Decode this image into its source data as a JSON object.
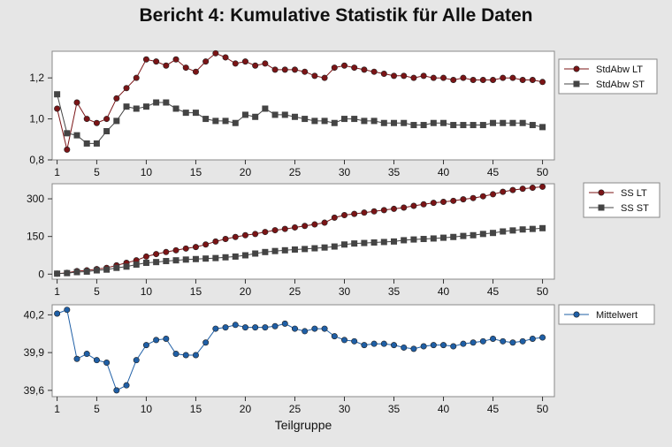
{
  "report": {
    "title": "Bericht 4: Kumulative Statistik für Alle Daten",
    "xlabel": "Teilgruppe"
  },
  "chart_data": [
    {
      "type": "line",
      "panel": "stdabw",
      "x": [
        1,
        2,
        3,
        4,
        5,
        6,
        7,
        8,
        9,
        10,
        11,
        12,
        13,
        14,
        15,
        16,
        17,
        18,
        19,
        20,
        21,
        22,
        23,
        24,
        25,
        26,
        27,
        28,
        29,
        30,
        31,
        32,
        33,
        34,
        35,
        36,
        37,
        38,
        39,
        40,
        41,
        42,
        43,
        44,
        45,
        46,
        47,
        48,
        49,
        50
      ],
      "xticks": [
        1,
        5,
        10,
        15,
        20,
        25,
        30,
        35,
        40,
        45,
        50
      ],
      "xlim": [
        0.5,
        51.2
      ],
      "ylim": [
        0.8,
        1.33
      ],
      "yticks": [
        0.8,
        1.0,
        1.2
      ],
      "ytick_labels": [
        "0,8",
        "1,0",
        "1,2"
      ],
      "legend_position": "right",
      "series": [
        {
          "name": "StdAbw LT",
          "marker": "circle",
          "color": "#7b1416",
          "values": [
            1.05,
            0.85,
            1.08,
            1.0,
            0.98,
            1.0,
            1.1,
            1.15,
            1.2,
            1.29,
            1.28,
            1.26,
            1.29,
            1.25,
            1.23,
            1.28,
            1.32,
            1.3,
            1.27,
            1.28,
            1.26,
            1.27,
            1.24,
            1.24,
            1.24,
            1.23,
            1.21,
            1.2,
            1.25,
            1.26,
            1.25,
            1.24,
            1.23,
            1.22,
            1.21,
            1.21,
            1.2,
            1.21,
            1.2,
            1.2,
            1.19,
            1.2,
            1.19,
            1.19,
            1.19,
            1.2,
            1.2,
            1.19,
            1.19,
            1.18
          ]
        },
        {
          "name": "StdAbw ST",
          "marker": "square",
          "color": "#444444",
          "values": [
            1.12,
            0.93,
            0.92,
            0.88,
            0.88,
            0.94,
            0.99,
            1.06,
            1.05,
            1.06,
            1.08,
            1.08,
            1.05,
            1.03,
            1.03,
            1.0,
            0.99,
            0.99,
            0.98,
            1.02,
            1.01,
            1.05,
            1.02,
            1.02,
            1.01,
            1.0,
            0.99,
            0.99,
            0.98,
            1.0,
            1.0,
            0.99,
            0.99,
            0.98,
            0.98,
            0.98,
            0.97,
            0.97,
            0.98,
            0.98,
            0.97,
            0.97,
            0.97,
            0.97,
            0.98,
            0.98,
            0.98,
            0.98,
            0.97,
            0.96
          ]
        }
      ]
    },
    {
      "type": "line",
      "panel": "ss",
      "x": [
        1,
        2,
        3,
        4,
        5,
        6,
        7,
        8,
        9,
        10,
        11,
        12,
        13,
        14,
        15,
        16,
        17,
        18,
        19,
        20,
        21,
        22,
        23,
        24,
        25,
        26,
        27,
        28,
        29,
        30,
        31,
        32,
        33,
        34,
        35,
        36,
        37,
        38,
        39,
        40,
        41,
        42,
        43,
        44,
        45,
        46,
        47,
        48,
        49,
        50
      ],
      "xticks": [
        1,
        5,
        10,
        15,
        20,
        25,
        30,
        35,
        40,
        45,
        50
      ],
      "xlim": [
        0.5,
        51.2
      ],
      "ylim": [
        -20,
        360
      ],
      "yticks": [
        0,
        150,
        300
      ],
      "ytick_labels": [
        "0",
        "150",
        "300"
      ],
      "legend_position": "right",
      "series": [
        {
          "name": "SS LT",
          "marker": "circle",
          "color": "#7b1416",
          "values": [
            2,
            5,
            12,
            15,
            20,
            25,
            35,
            45,
            55,
            70,
            80,
            88,
            95,
            102,
            108,
            118,
            130,
            140,
            148,
            155,
            160,
            168,
            175,
            180,
            186,
            192,
            198,
            205,
            225,
            235,
            240,
            245,
            250,
            255,
            260,
            265,
            272,
            278,
            284,
            288,
            292,
            298,
            303,
            310,
            318,
            328,
            335,
            340,
            344,
            348
          ]
        },
        {
          "name": "SS ST",
          "marker": "square",
          "color": "#444444",
          "values": [
            2,
            4,
            8,
            10,
            15,
            18,
            25,
            30,
            38,
            45,
            48,
            52,
            55,
            58,
            60,
            62,
            64,
            67,
            70,
            75,
            82,
            88,
            92,
            95,
            98,
            100,
            103,
            106,
            110,
            118,
            122,
            124,
            126,
            128,
            130,
            135,
            138,
            140,
            142,
            145,
            148,
            152,
            155,
            160,
            164,
            170,
            174,
            178,
            180,
            183
          ]
        }
      ]
    },
    {
      "type": "line",
      "panel": "mittelwert",
      "x": [
        1,
        2,
        3,
        4,
        5,
        6,
        7,
        8,
        9,
        10,
        11,
        12,
        13,
        14,
        15,
        16,
        17,
        18,
        19,
        20,
        21,
        22,
        23,
        24,
        25,
        26,
        27,
        28,
        29,
        30,
        31,
        32,
        33,
        34,
        35,
        36,
        37,
        38,
        39,
        40,
        41,
        42,
        43,
        44,
        45,
        46,
        47,
        48,
        49,
        50
      ],
      "xticks": [
        1,
        5,
        10,
        15,
        20,
        25,
        30,
        35,
        40,
        45,
        50
      ],
      "xlim": [
        0.5,
        51.2
      ],
      "ylim": [
        39.55,
        40.28
      ],
      "yticks": [
        39.6,
        39.9,
        40.2
      ],
      "ytick_labels": [
        "39,6",
        "39,9",
        "40,2"
      ],
      "legend_position": "right",
      "series": [
        {
          "name": "Mittelwert",
          "marker": "circle",
          "color": "#1f5fa6",
          "values": [
            40.21,
            40.24,
            39.85,
            39.89,
            39.84,
            39.82,
            39.6,
            39.64,
            39.84,
            39.96,
            40.0,
            40.01,
            39.89,
            39.88,
            39.88,
            39.98,
            40.09,
            40.1,
            40.12,
            40.1,
            40.1,
            40.1,
            40.11,
            40.13,
            40.09,
            40.07,
            40.09,
            40.09,
            40.03,
            40.0,
            39.99,
            39.96,
            39.97,
            39.97,
            39.96,
            39.94,
            39.93,
            39.95,
            39.96,
            39.96,
            39.95,
            39.97,
            39.98,
            39.99,
            40.01,
            39.99,
            39.98,
            39.99,
            40.01,
            40.02
          ]
        }
      ]
    }
  ]
}
